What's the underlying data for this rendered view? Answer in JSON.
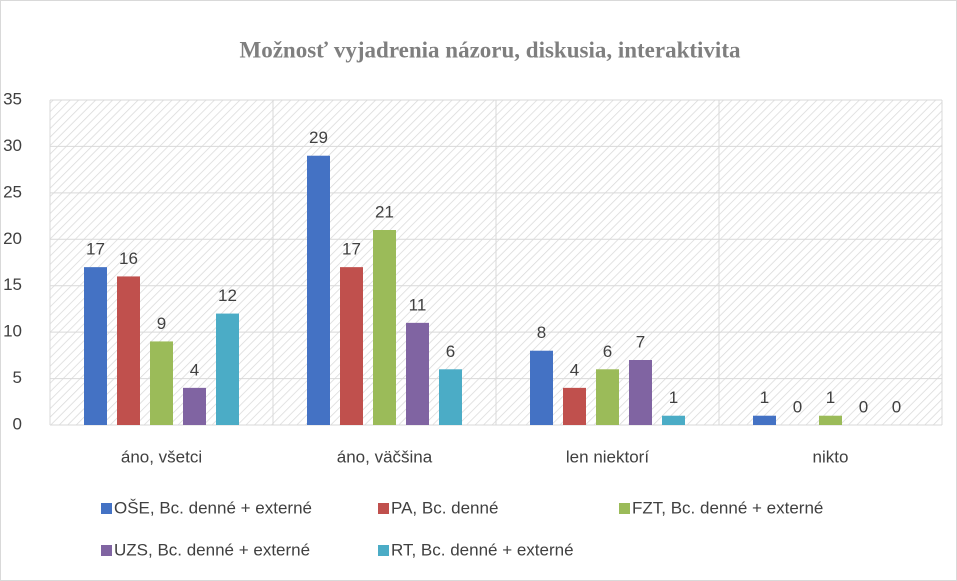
{
  "chart_data": {
    "type": "bar",
    "title": "Možnosť vyjadrenia názoru, diskusia, interaktivita",
    "categories": [
      "áno, všetci",
      "áno, väčšina",
      "len niektorí",
      "nikto"
    ],
    "series": [
      {
        "name": "OŠE, Bc. denné + externé",
        "color": "#4472c4",
        "values": [
          17,
          29,
          8,
          1
        ]
      },
      {
        "name": "PA, Bc. denné",
        "color": "#c0504d",
        "values": [
          16,
          17,
          4,
          0
        ]
      },
      {
        "name": "FZT, Bc. denné + externé",
        "color": "#9bbb59",
        "values": [
          9,
          21,
          6,
          1
        ]
      },
      {
        "name": "UZS, Bc. denné + externé",
        "color": "#8064a2",
        "values": [
          4,
          11,
          7,
          0
        ]
      },
      {
        "name": "RT, Bc. denné + externé",
        "color": "#4bacc6",
        "values": [
          12,
          6,
          1,
          0
        ]
      }
    ],
    "ylim": [
      0,
      35
    ],
    "yticks": [
      0,
      5,
      10,
      15,
      20,
      25,
      30,
      35
    ],
    "grid": true,
    "legend": "bottom",
    "data_labels": true
  }
}
